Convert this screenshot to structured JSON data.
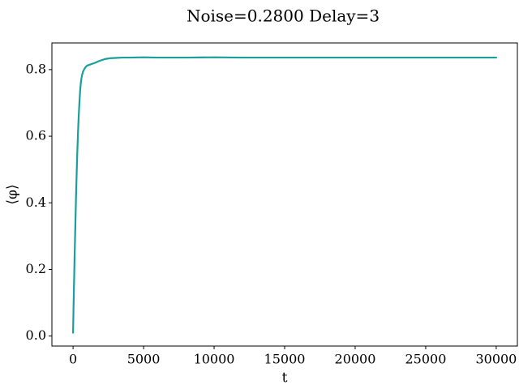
{
  "chart_data": {
    "type": "line",
    "title": "Noise=0.2800 Delay=3",
    "xlabel": "t",
    "ylabel": "⟨φ⟩",
    "xlim": [
      -1500,
      31500
    ],
    "ylim": [
      -0.03,
      0.88
    ],
    "xticks": [
      0,
      5000,
      10000,
      15000,
      20000,
      25000,
      30000
    ],
    "xtick_labels": [
      "0",
      "5000",
      "10000",
      "15000",
      "20000",
      "25000",
      "30000"
    ],
    "yticks": [
      0.0,
      0.2,
      0.4,
      0.6,
      0.8
    ],
    "ytick_labels": [
      "0.0",
      "0.2",
      "0.4",
      "0.6",
      "0.8"
    ],
    "grid": false,
    "line_color": "#1a9f9a",
    "series": [
      {
        "x": [
          0,
          50,
          100,
          150,
          200,
          250,
          300,
          350,
          400,
          450,
          500,
          550,
          600,
          650,
          700,
          800,
          900,
          1000,
          1200,
          1400,
          1600,
          1800,
          2000,
          2300,
          2600,
          3000,
          3500,
          4000,
          5000,
          6000,
          8000,
          10000,
          12000,
          15000,
          18000,
          20000,
          22000,
          25000,
          28000,
          30000
        ],
        "y": [
          0.01,
          0.12,
          0.22,
          0.31,
          0.4,
          0.48,
          0.55,
          0.61,
          0.66,
          0.7,
          0.735,
          0.76,
          0.775,
          0.785,
          0.793,
          0.802,
          0.808,
          0.812,
          0.815,
          0.818,
          0.821,
          0.825,
          0.828,
          0.832,
          0.834,
          0.835,
          0.836,
          0.836,
          0.837,
          0.836,
          0.836,
          0.837,
          0.836,
          0.836,
          0.836,
          0.836,
          0.836,
          0.836,
          0.836,
          0.836
        ]
      }
    ]
  }
}
